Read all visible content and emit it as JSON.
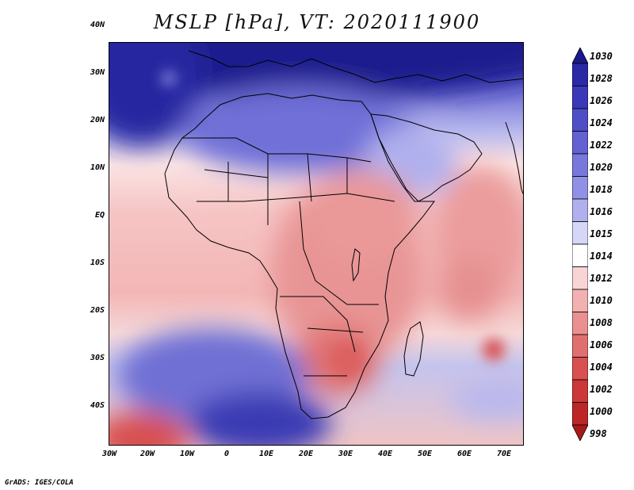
{
  "title": "MSLP [hPa], VT: 2020111900",
  "footer": "GrADS: IGES/COLA",
  "lat_labels": [
    "40N",
    "30N",
    "20N",
    "10N",
    "EQ",
    "10S",
    "20S",
    "30S",
    "40S"
  ],
  "lon_labels": [
    "30W",
    "20W",
    "10W",
    "0",
    "10E",
    "20E",
    "30E",
    "40E",
    "50E",
    "60E",
    "70E"
  ],
  "colorbar_labels": [
    "1030",
    "1028",
    "1026",
    "1024",
    "1022",
    "1020",
    "1018",
    "1016",
    "1015",
    "1014",
    "1012",
    "1010",
    "1008",
    "1006",
    "1004",
    "1002",
    "1000",
    "998"
  ],
  "colorbar_colors": [
    "#1a1a8c",
    "#2a2aa6",
    "#3a3ab8",
    "#4e4ec6",
    "#6262d2",
    "#7878dc",
    "#9090e4",
    "#b0b0ee",
    "#d6d6f6",
    "#ffffff",
    "#f8d4d4",
    "#f2b0b0",
    "#ea9090",
    "#e07070",
    "#d85050",
    "#cc3838",
    "#bc2626",
    "#a81a1a"
  ]
}
